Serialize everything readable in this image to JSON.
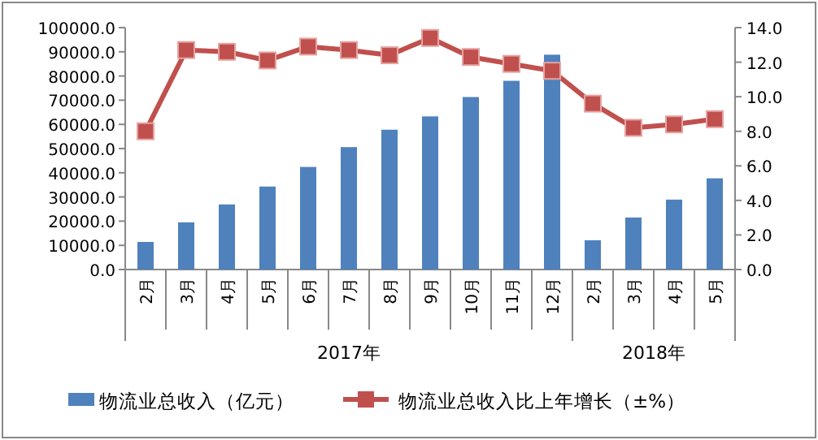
{
  "chart_data": {
    "type": "bar",
    "categories": [
      "2月",
      "3月",
      "4月",
      "5月",
      "6月",
      "7月",
      "8月",
      "9月",
      "10月",
      "11月",
      "12月",
      "2月",
      "3月",
      "4月",
      "5月"
    ],
    "series": [
      {
        "name": "物流业总收入（亿元）",
        "color": "#4f81bd",
        "values": [
          11400,
          19500,
          26900,
          34300,
          42400,
          50600,
          57800,
          63300,
          71300,
          78000,
          88800,
          12100,
          21500,
          28900,
          37700
        ]
      },
      {
        "name": "物流业总收入比上年增长（±%）",
        "type": "line",
        "axis": "y2",
        "color": "#c0504d",
        "marker": "square",
        "values": [
          8.0,
          12.7,
          12.6,
          12.1,
          12.9,
          12.7,
          12.4,
          13.4,
          12.3,
          11.9,
          11.5,
          9.6,
          8.2,
          8.4,
          8.7
        ]
      }
    ],
    "ylim": [
      0,
      100000
    ],
    "yticks": [
      {
        "value": 0,
        "label": "0.0"
      },
      {
        "value": 10000,
        "label": "10000.0"
      },
      {
        "value": 20000,
        "label": "20000.0"
      },
      {
        "value": 30000,
        "label": "30000.0"
      },
      {
        "value": 40000,
        "label": "40000.0"
      },
      {
        "value": 50000,
        "label": "50000.0"
      },
      {
        "value": 60000,
        "label": "60000.0"
      },
      {
        "value": 70000,
        "label": "70000.0"
      },
      {
        "value": 80000,
        "label": "80000.0"
      },
      {
        "value": 90000,
        "label": "90000.0"
      },
      {
        "value": 100000,
        "label": "100000.0"
      }
    ],
    "y2lim": [
      0,
      14
    ],
    "y2ticks": [
      {
        "value": 0,
        "label": "0.0"
      },
      {
        "value": 2,
        "label": "2.0"
      },
      {
        "value": 4,
        "label": "4.0"
      },
      {
        "value": 6,
        "label": "6.0"
      },
      {
        "value": 8,
        "label": "8.0"
      },
      {
        "value": 10,
        "label": "10.0"
      },
      {
        "value": 12,
        "label": "12.0"
      },
      {
        "value": 14,
        "label": "14.0"
      }
    ],
    "annotations": [
      "2017年",
      "2018年"
    ],
    "grid": false,
    "legend": "bottom"
  }
}
